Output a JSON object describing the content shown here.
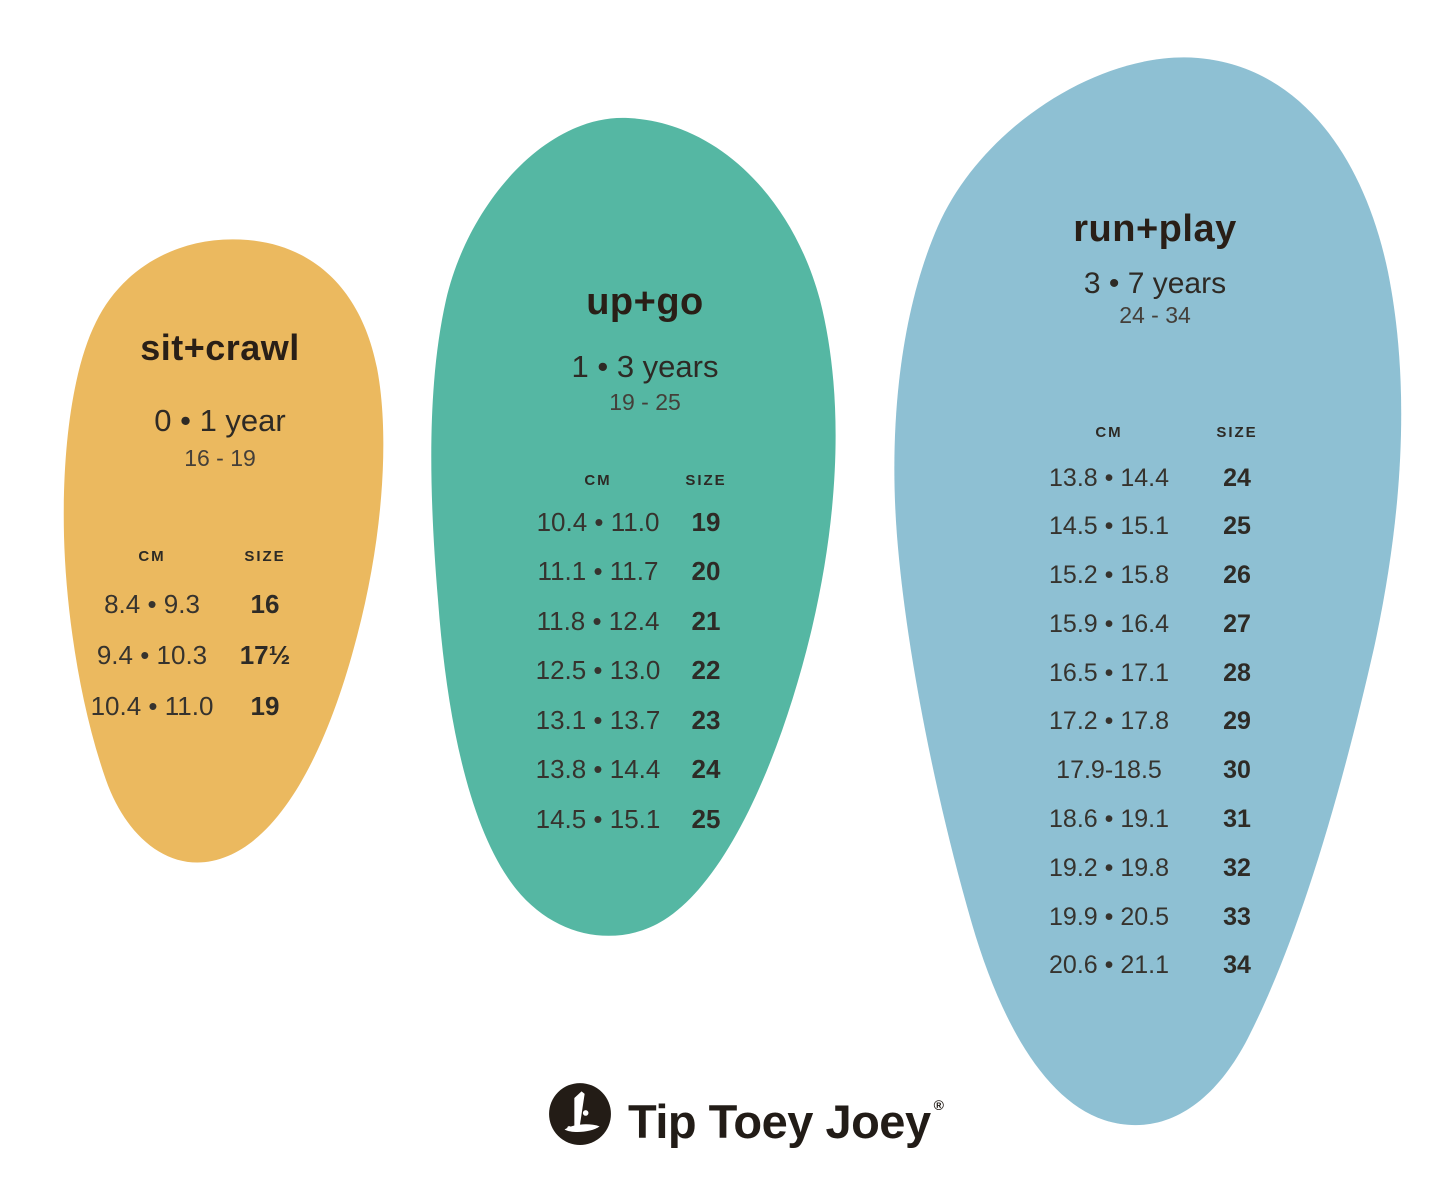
{
  "brand": {
    "logo_text": "Tip Toey Joey",
    "registered_mark": "®",
    "logo_color": "#221c17"
  },
  "chart_data": [
    {
      "type": "table",
      "id": "sit-crawl",
      "title": "sit+crawl",
      "age": "0 • 1 year",
      "size_range": "16 - 19",
      "color": "#EBB95F",
      "columns": {
        "cm": "CM",
        "size": "SIZE"
      },
      "rows": [
        {
          "cm": "8.4 • 9.3",
          "size": "16"
        },
        {
          "cm": "9.4 • 10.3",
          "size": "17½"
        },
        {
          "cm": "10.4 • 11.0",
          "size": "19"
        }
      ]
    },
    {
      "type": "table",
      "id": "up-go",
      "title": "up+go",
      "age": "1 • 3 years",
      "size_range": "19 - 25",
      "color": "#55B7A3",
      "columns": {
        "cm": "CM",
        "size": "SIZE"
      },
      "rows": [
        {
          "cm": "10.4 • 11.0",
          "size": "19"
        },
        {
          "cm": "11.1 • 11.7",
          "size": "20"
        },
        {
          "cm": "11.8 • 12.4",
          "size": "21"
        },
        {
          "cm": "12.5 • 13.0",
          "size": "22"
        },
        {
          "cm": "13.1 • 13.7",
          "size": "23"
        },
        {
          "cm": "13.8 • 14.4",
          "size": "24"
        },
        {
          "cm": "14.5 • 15.1",
          "size": "25"
        }
      ]
    },
    {
      "type": "table",
      "id": "run-play",
      "title": "run+play",
      "age": "3 • 7 years",
      "size_range": "24 - 34",
      "color": "#8EC0D3",
      "columns": {
        "cm": "CM",
        "size": "SIZE"
      },
      "rows": [
        {
          "cm": "13.8 • 14.4",
          "size": "24"
        },
        {
          "cm": "14.5 • 15.1",
          "size": "25"
        },
        {
          "cm": "15.2 • 15.8",
          "size": "26"
        },
        {
          "cm": "15.9 • 16.4",
          "size": "27"
        },
        {
          "cm": "16.5 • 17.1",
          "size": "28"
        },
        {
          "cm": "17.2 • 17.8",
          "size": "29"
        },
        {
          "cm": "17.9-18.5",
          "size": "30"
        },
        {
          "cm": "18.6 • 19.1",
          "size": "31"
        },
        {
          "cm": "19.2 • 19.8",
          "size": "32"
        },
        {
          "cm": "19.9 • 20.5",
          "size": "33"
        },
        {
          "cm": "20.6 • 21.1",
          "size": "34"
        }
      ]
    }
  ]
}
